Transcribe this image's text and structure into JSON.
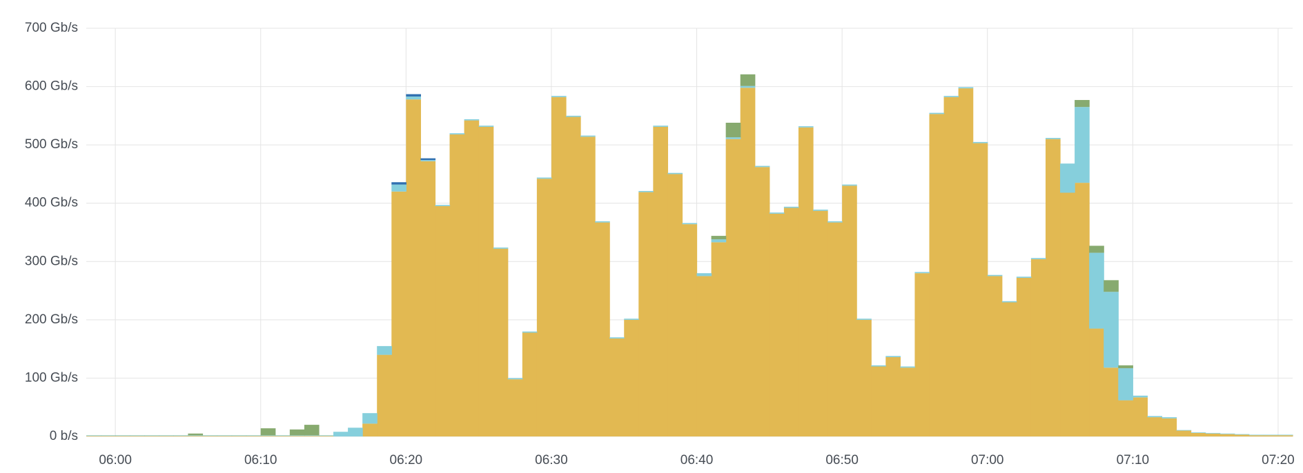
{
  "chart_data": {
    "type": "stacked-step-area",
    "x": [
      "05:58",
      "05:59",
      "06:00",
      "06:01",
      "06:02",
      "06:03",
      "06:04",
      "06:05",
      "06:06",
      "06:07",
      "06:08",
      "06:09",
      "06:10",
      "06:11",
      "06:12",
      "06:13",
      "06:14",
      "06:15",
      "06:16",
      "06:17",
      "06:18",
      "06:19",
      "06:20",
      "06:21",
      "06:22",
      "06:23",
      "06:24",
      "06:25",
      "06:26",
      "06:27",
      "06:28",
      "06:29",
      "06:30",
      "06:31",
      "06:32",
      "06:33",
      "06:34",
      "06:35",
      "06:36",
      "06:37",
      "06:38",
      "06:39",
      "06:40",
      "06:41",
      "06:42",
      "06:43",
      "06:44",
      "06:45",
      "06:46",
      "06:47",
      "06:48",
      "06:49",
      "06:50",
      "06:51",
      "06:52",
      "06:53",
      "06:54",
      "06:55",
      "06:56",
      "06:57",
      "06:58",
      "06:59",
      "07:00",
      "07:01",
      "07:02",
      "07:03",
      "07:04",
      "07:05",
      "07:06",
      "07:07",
      "07:08",
      "07:09",
      "07:10",
      "07:11",
      "07:12",
      "07:13",
      "07:14",
      "07:15",
      "07:16",
      "07:17",
      "07:18",
      "07:19",
      "07:20"
    ],
    "series": [
      {
        "color": "#e2b952",
        "values": [
          1,
          1,
          1,
          1,
          1,
          1,
          1,
          1,
          1,
          1,
          1,
          1,
          1,
          1,
          1,
          1,
          1,
          0,
          0,
          22,
          140,
          420,
          578,
          472,
          395,
          518,
          542,
          531,
          322,
          98,
          178,
          442,
          582,
          548,
          514,
          367,
          168,
          200,
          419,
          531,
          450,
          364,
          275,
          333,
          510,
          598,
          462,
          382,
          392,
          530,
          387,
          367,
          430,
          200,
          120,
          136,
          118,
          280,
          553,
          582,
          597,
          503,
          275,
          230,
          272,
          304,
          510,
          418,
          435,
          185,
          118,
          62,
          67,
          33,
          31,
          10,
          6,
          5,
          4,
          3,
          2,
          2,
          2
        ]
      },
      {
        "color": "#86cfdc",
        "values": [
          1,
          1,
          1,
          1,
          1,
          1,
          1,
          1,
          1,
          1,
          1,
          1,
          1,
          1,
          1,
          1,
          1,
          8,
          15,
          18,
          15,
          12,
          5,
          2,
          2,
          2,
          2,
          2,
          2,
          2,
          2,
          2,
          2,
          2,
          2,
          2,
          2,
          2,
          2,
          2,
          2,
          2,
          5,
          5,
          3,
          3,
          2,
          2,
          2,
          2,
          2,
          2,
          2,
          2,
          2,
          2,
          2,
          2,
          2,
          2,
          2,
          2,
          2,
          2,
          2,
          2,
          2,
          50,
          130,
          130,
          130,
          55,
          3,
          2,
          2,
          1,
          1,
          1,
          1,
          1,
          1,
          1,
          1
        ]
      },
      {
        "color": "#87aa6f",
        "values": [
          0,
          0,
          0,
          0,
          0,
          0,
          0,
          3,
          0,
          0,
          0,
          0,
          12,
          0,
          10,
          18,
          0,
          0,
          0,
          0,
          0,
          0,
          0,
          0,
          0,
          0,
          0,
          0,
          0,
          0,
          0,
          0,
          0,
          0,
          0,
          0,
          0,
          0,
          0,
          0,
          0,
          0,
          0,
          6,
          25,
          20,
          0,
          0,
          0,
          0,
          0,
          0,
          0,
          0,
          0,
          0,
          0,
          0,
          0,
          0,
          0,
          0,
          0,
          0,
          0,
          0,
          0,
          0,
          12,
          12,
          20,
          5,
          0,
          0,
          0,
          0,
          0,
          0,
          0,
          0,
          0,
          0,
          0
        ]
      },
      {
        "color": "#2f6fb0",
        "values": [
          0,
          0,
          0,
          0,
          0,
          0,
          0,
          0,
          0,
          0,
          0,
          0,
          0,
          0,
          0,
          0,
          0,
          0,
          0,
          0,
          0,
          4,
          4,
          3,
          0,
          0,
          0,
          0,
          0,
          0,
          0,
          0,
          0,
          0,
          0,
          0,
          0,
          0,
          0,
          0,
          0,
          0,
          0,
          0,
          0,
          0,
          0,
          0,
          0,
          0,
          0,
          0,
          0,
          0,
          0,
          0,
          0,
          0,
          0,
          0,
          0,
          0,
          0,
          0,
          0,
          0,
          0,
          0,
          0,
          0,
          0,
          0,
          0,
          0,
          0,
          0,
          0,
          0,
          0,
          0,
          0,
          0,
          0
        ]
      }
    ],
    "xlim": [
      "05:58",
      "07:21"
    ],
    "xticks": [
      "06:00",
      "06:10",
      "06:20",
      "06:30",
      "06:40",
      "06:50",
      "07:00",
      "07:10",
      "07:20"
    ],
    "ylim": [
      0,
      700
    ],
    "yticks": [
      {
        "value": 0,
        "label": "0 b/s"
      },
      {
        "value": 100,
        "label": "100 Gb/s"
      },
      {
        "value": 200,
        "label": "200 Gb/s"
      },
      {
        "value": 300,
        "label": "300 Gb/s"
      },
      {
        "value": 400,
        "label": "400 Gb/s"
      },
      {
        "value": 500,
        "label": "500 Gb/s"
      },
      {
        "value": 600,
        "label": "600 Gb/s"
      },
      {
        "value": 700,
        "label": "700 Gb/s"
      }
    ],
    "grid": true
  }
}
